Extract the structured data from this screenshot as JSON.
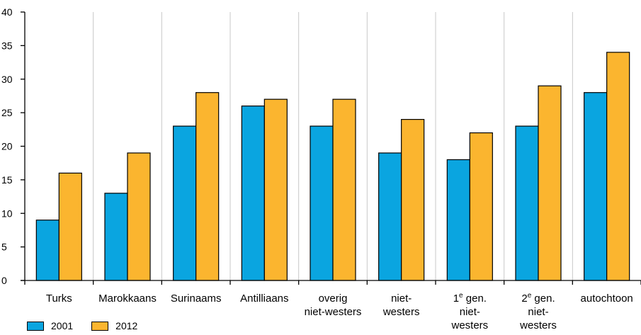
{
  "chart_data": {
    "type": "bar",
    "categories": [
      [
        "Turks"
      ],
      [
        "Marokkaans"
      ],
      [
        "Surinaams"
      ],
      [
        "Antilliaans"
      ],
      [
        "overig",
        "niet-westers"
      ],
      [
        "niet-",
        "westers"
      ],
      [
        "1e gen.",
        "niet-",
        "westers"
      ],
      [
        "2e gen.",
        "niet-",
        "westers"
      ],
      [
        "autochtoon"
      ]
    ],
    "series": [
      {
        "name": "2001",
        "color": "#0aa5e0",
        "values": [
          9,
          13,
          23,
          26,
          23,
          19,
          18,
          23,
          28
        ]
      },
      {
        "name": "2012",
        "color": "#fbb52f",
        "values": [
          16,
          19,
          28,
          27,
          27,
          24,
          22,
          29,
          34
        ]
      }
    ],
    "ylim": [
      0,
      40
    ],
    "yticks": [
      0,
      5,
      10,
      15,
      20,
      25,
      30,
      35,
      40
    ],
    "grid": "vertical",
    "legend_position": "bottom-left"
  }
}
